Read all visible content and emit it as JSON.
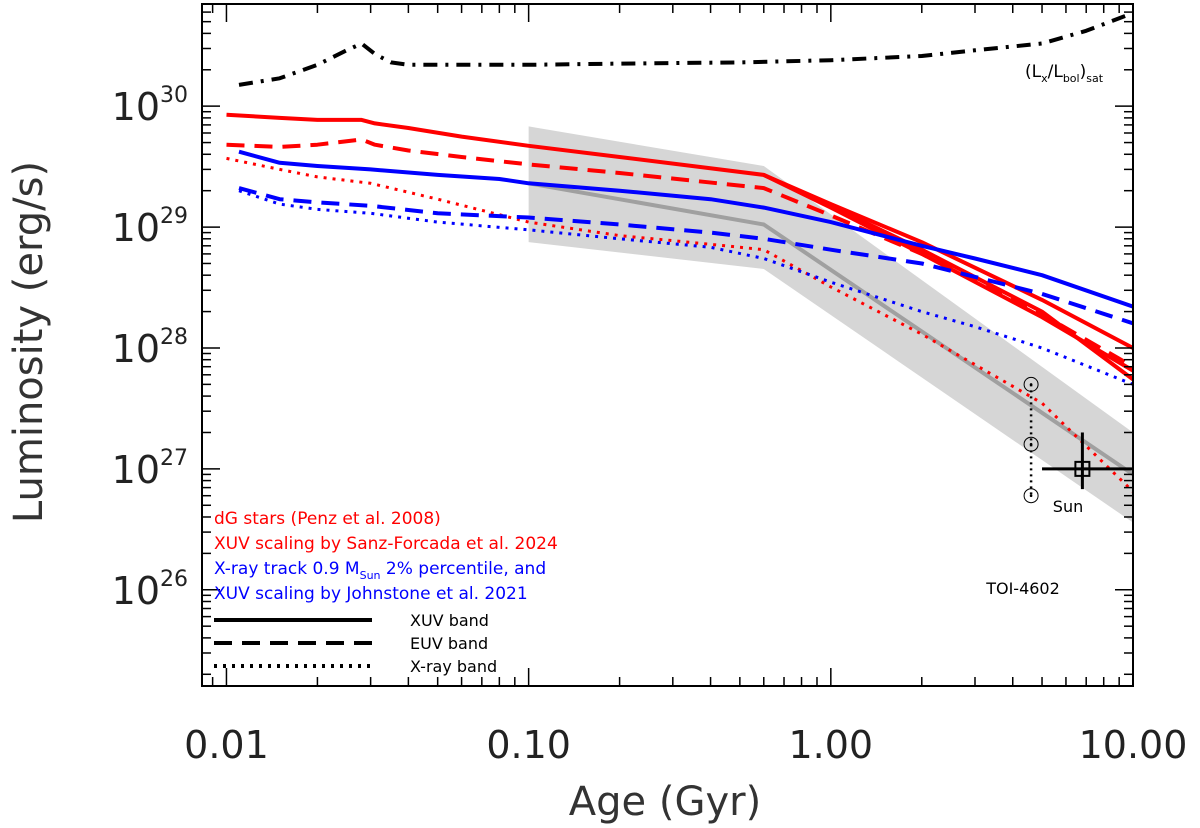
{
  "chart_data": {
    "type": "line",
    "xlabel": "Age (Gyr)",
    "ylabel": "Luminosity (erg/s)",
    "x_scale": "log",
    "y_scale": "log",
    "xlim": [
      0.0083,
      10
    ],
    "ylim": [
      1.6e+25,
      7e+30
    ],
    "x_ticks": [
      {
        "value": 0.01,
        "label": "0.01"
      },
      {
        "value": 0.1,
        "label": "0.10"
      },
      {
        "value": 1,
        "label": "1.00"
      },
      {
        "value": 10,
        "label": "10.00"
      }
    ],
    "y_ticks": [
      {
        "value": 1e+26,
        "base": "10",
        "exp": "26"
      },
      {
        "value": 1e+27,
        "base": "10",
        "exp": "27"
      },
      {
        "value": 1e+28,
        "base": "10",
        "exp": "28"
      },
      {
        "value": 1e+29,
        "base": "10",
        "exp": "29"
      },
      {
        "value": 1e+30,
        "base": "10",
        "exp": "30"
      }
    ],
    "grid": false,
    "shaded_band": {
      "color": "#d6d6d6",
      "x": [
        0.1,
        0.6,
        10
      ],
      "upper": [
        6.8e+29,
        3.2e+29,
        2e+27
      ],
      "lower": [
        7.5e+28,
        4.5e+28,
        3.6e+26
      ]
    },
    "series": [
      {
        "name": "(Lx/Lbol)sat",
        "color": "#000000",
        "dash": "dashdot",
        "x": [
          0.011,
          0.015,
          0.02,
          0.025,
          0.028,
          0.031,
          0.035,
          0.04,
          0.06,
          0.1,
          0.2,
          0.5,
          1,
          2,
          3,
          5,
          7,
          10
        ],
        "y": [
          1.5e+30,
          1.7e+30,
          2.2e+30,
          2.9e+30,
          3.3e+30,
          2.7e+30,
          2.3e+30,
          2.2e+30,
          2.2e+30,
          2.2e+30,
          2.25e+30,
          2.3e+30,
          2.4e+30,
          2.6e+30,
          2.9e+30,
          3.3e+30,
          4.2e+30,
          5.9e+30
        ]
      },
      {
        "color": "#a0a0a0",
        "dash": "solid",
        "x": [
          0.1,
          0.6,
          10
        ],
        "y": [
          2.3e+29,
          1.05e+29,
          9e+26
        ]
      },
      {
        "color": "#ff0000",
        "dash": "solid",
        "x": [
          0.01,
          0.015,
          0.02,
          0.028,
          0.031,
          0.04,
          0.06,
          0.1,
          0.2,
          0.6,
          1,
          2,
          5,
          10
        ],
        "y": [
          8.5e+29,
          8e+29,
          7.7e+29,
          7.7e+29,
          7.2e+29,
          6.6e+29,
          5.6e+29,
          4.7e+29,
          3.8e+29,
          2.7e+29,
          1.55e+29,
          7.5e+28,
          2.5e+28,
          1e+28
        ]
      },
      {
        "color": "#ff0000",
        "dash": "solid",
        "x": [
          0.6,
          1,
          2,
          5,
          10
        ],
        "y": [
          2.7e+29,
          1.5e+29,
          6.5e+28,
          2e+28,
          5.5e+27
        ]
      },
      {
        "color": "#ff0000",
        "dash": "solid",
        "x": [
          0.6,
          1,
          2,
          5,
          10
        ],
        "y": [
          2.7e+29,
          1.45e+29,
          6e+28,
          1.8e+28,
          6.5e+27
        ]
      },
      {
        "color": "#ff0000",
        "dash": "dashed",
        "x": [
          0.01,
          0.015,
          0.02,
          0.028,
          0.031,
          0.04,
          0.06,
          0.1,
          0.2,
          0.6,
          1,
          2,
          5,
          10
        ],
        "y": [
          4.8e+29,
          4.6e+29,
          4.8e+29,
          5.3e+29,
          4.8e+29,
          4.3e+29,
          3.8e+29,
          3.3e+29,
          2.8e+29,
          2.1e+29,
          1.25e+29,
          6e+28,
          1.9e+28,
          7e+27
        ]
      },
      {
        "color": "#ff0000",
        "dash": "dotted",
        "x": [
          0.01,
          0.015,
          0.02,
          0.03,
          0.05,
          0.1,
          0.2,
          0.4,
          0.6,
          1,
          2,
          5,
          10
        ],
        "y": [
          3.7e+29,
          3e+29,
          2.6e+29,
          2.3e+29,
          1.7e+29,
          1.1e+29,
          8.5e+28,
          7.2e+28,
          6.5e+28,
          3.2e+28,
          1.3e+28,
          3.5e+27,
          6.5e+26
        ]
      },
      {
        "color": "#0000ff",
        "dash": "solid",
        "x": [
          0.011,
          0.015,
          0.02,
          0.03,
          0.05,
          0.08,
          0.1,
          0.2,
          0.4,
          0.6,
          1,
          2,
          3,
          5,
          10
        ],
        "y": [
          4.2e+29,
          3.4e+29,
          3.2e+29,
          3e+29,
          2.7e+29,
          2.5e+29,
          2.3e+29,
          2e+29,
          1.7e+29,
          1.45e+29,
          1.1e+29,
          7e+28,
          5.5e+28,
          4e+28,
          2.2e+28
        ]
      },
      {
        "color": "#0000ff",
        "dash": "dashed",
        "x": [
          0.011,
          0.015,
          0.02,
          0.03,
          0.05,
          0.1,
          0.2,
          0.4,
          0.6,
          1,
          2,
          5,
          10
        ],
        "y": [
          2.1e+29,
          1.7e+29,
          1.6e+29,
          1.5e+29,
          1.3e+29,
          1.2e+29,
          1.05e+29,
          9e+28,
          8e+28,
          6.5e+28,
          5e+28,
          2.8e+28,
          1.6e+28
        ]
      },
      {
        "color": "#0000ff",
        "dash": "dotted",
        "x": [
          0.011,
          0.015,
          0.02,
          0.03,
          0.05,
          0.1,
          0.2,
          0.4,
          0.6,
          1,
          2,
          3,
          5,
          10
        ],
        "y": [
          2e+29,
          1.55e+29,
          1.4e+29,
          1.3e+29,
          1.1e+29,
          9.5e+28,
          8e+28,
          6.8e+28,
          5.5e+28,
          3.5e+28,
          2e+28,
          1.5e+28,
          1e+28,
          5e+27
        ]
      }
    ],
    "annotations": {
      "sat_label": {
        "main": "(L",
        "sub1": "x",
        "mid": "/L",
        "sub2": "bol",
        "close": ")",
        "sub3": "sat"
      },
      "toi": {
        "label": "TOI-4602",
        "age": 4.6,
        "upper": 5e+27,
        "middle": 1.6e+27,
        "lower": 6e+26
      },
      "sun": {
        "label": "Sun",
        "age": 6.8,
        "lum": 1e+27,
        "xerr": [
          5.0,
          10.0
        ],
        "yerr": [
          6.8e+26,
          2e+27
        ]
      }
    }
  },
  "legend": {
    "lines": [
      {
        "text": "dG stars (Penz et al. 2008)",
        "color": "#ff0000"
      },
      {
        "text": "XUV scaling by Sanz-Forcada et al. 2024",
        "color": "#ff0000"
      },
      {
        "text": "X-ray track 0.9 M",
        "sub": "Sun",
        "after": " 2% percentile, and",
        "color": "#0000ff"
      },
      {
        "text": "XUV scaling by Johnstone et al. 2021",
        "color": "#0000ff"
      }
    ],
    "samples": [
      {
        "label": "XUV band",
        "dash": "solid"
      },
      {
        "label": "EUV band",
        "dash": "dashed"
      },
      {
        "label": "X-ray band",
        "dash": "dotted"
      }
    ]
  }
}
